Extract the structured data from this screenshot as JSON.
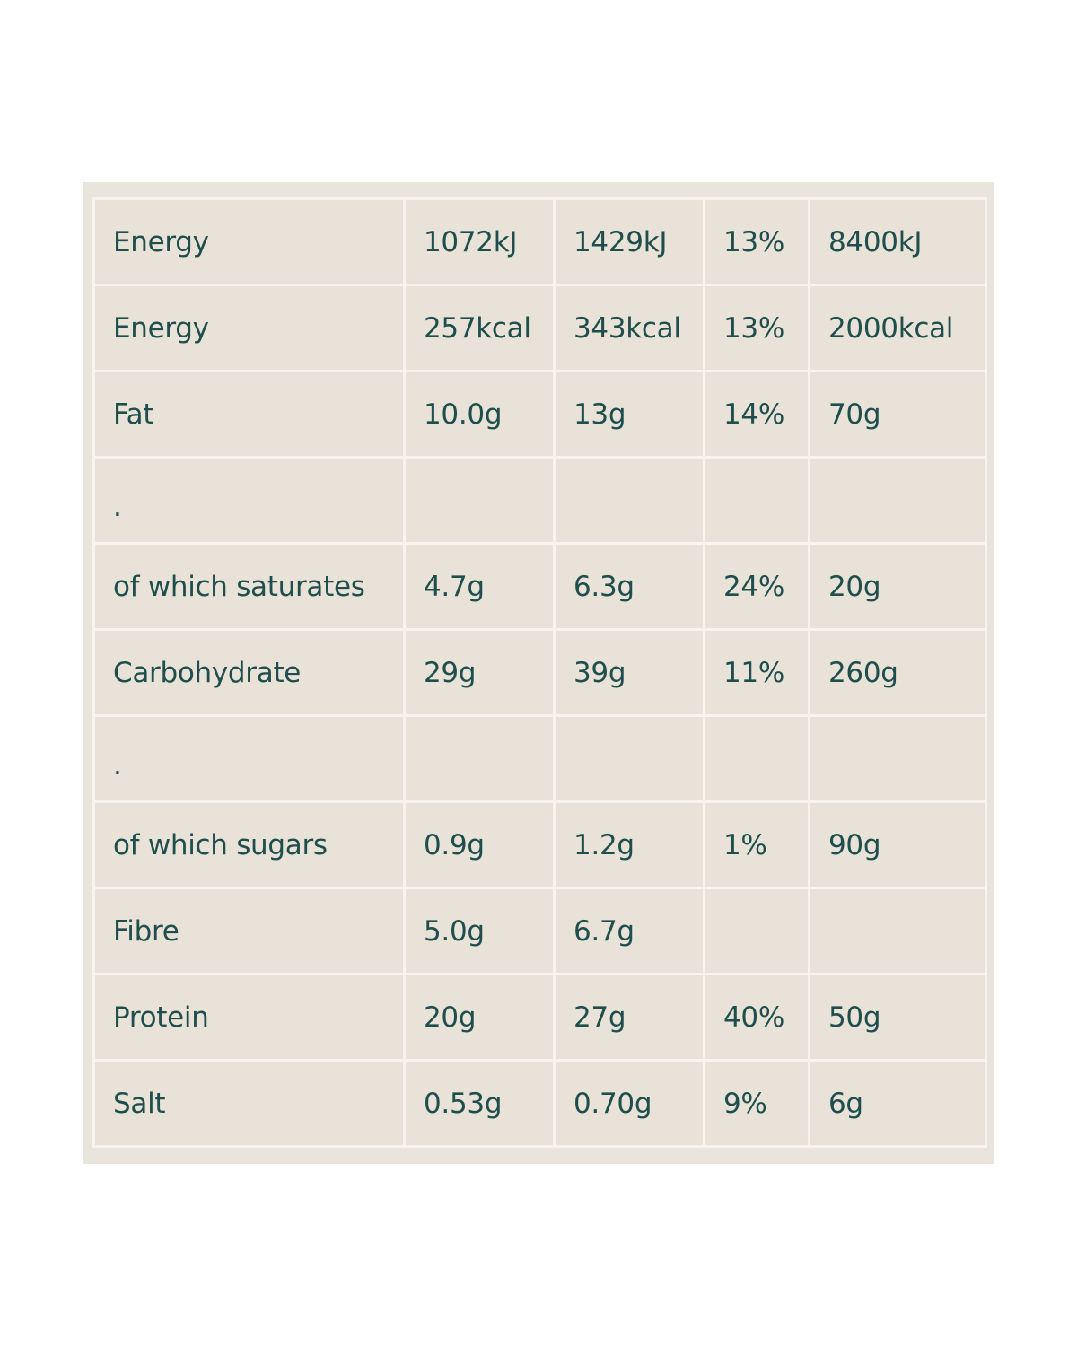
{
  "nutrition": {
    "rows": [
      {
        "nutrient": "Energy",
        "per_100g": "1072kJ",
        "per_serving": "1429kJ",
        "ri_percent": "13%",
        "reference": "8400kJ"
      },
      {
        "nutrient": "Energy",
        "per_100g": "257kcal",
        "per_serving": "343kcal",
        "ri_percent": "13%",
        "reference": "2000kcal"
      },
      {
        "nutrient": "Fat",
        "per_100g": "10.0g",
        "per_serving": "13g",
        "ri_percent": "14%",
        "reference": "70g"
      },
      {
        "nutrient": ".",
        "per_100g": "",
        "per_serving": "",
        "ri_percent": "",
        "reference": ""
      },
      {
        "nutrient": "of which saturates",
        "per_100g": "4.7g",
        "per_serving": "6.3g",
        "ri_percent": "24%",
        "reference": "20g"
      },
      {
        "nutrient": "Carbohydrate",
        "per_100g": "29g",
        "per_serving": "39g",
        "ri_percent": "11%",
        "reference": "260g"
      },
      {
        "nutrient": ".",
        "per_100g": "",
        "per_serving": "",
        "ri_percent": "",
        "reference": ""
      },
      {
        "nutrient": "of which sugars",
        "per_100g": "0.9g",
        "per_serving": "1.2g",
        "ri_percent": "1%",
        "reference": "90g"
      },
      {
        "nutrient": "Fibre",
        "per_100g": "5.0g",
        "per_serving": "6.7g",
        "ri_percent": "",
        "reference": ""
      },
      {
        "nutrient": "Protein",
        "per_100g": "20g",
        "per_serving": "27g",
        "ri_percent": "40%",
        "reference": "50g"
      },
      {
        "nutrient": "Salt",
        "per_100g": "0.53g",
        "per_serving": "0.70g",
        "ri_percent": "9%",
        "reference": "6g"
      }
    ]
  },
  "colors": {
    "panel_background": "#e9e4dc",
    "cell_background": "#e8e2d9",
    "grid_lines": "#f7f4ef",
    "text": "#1f4e4c"
  }
}
